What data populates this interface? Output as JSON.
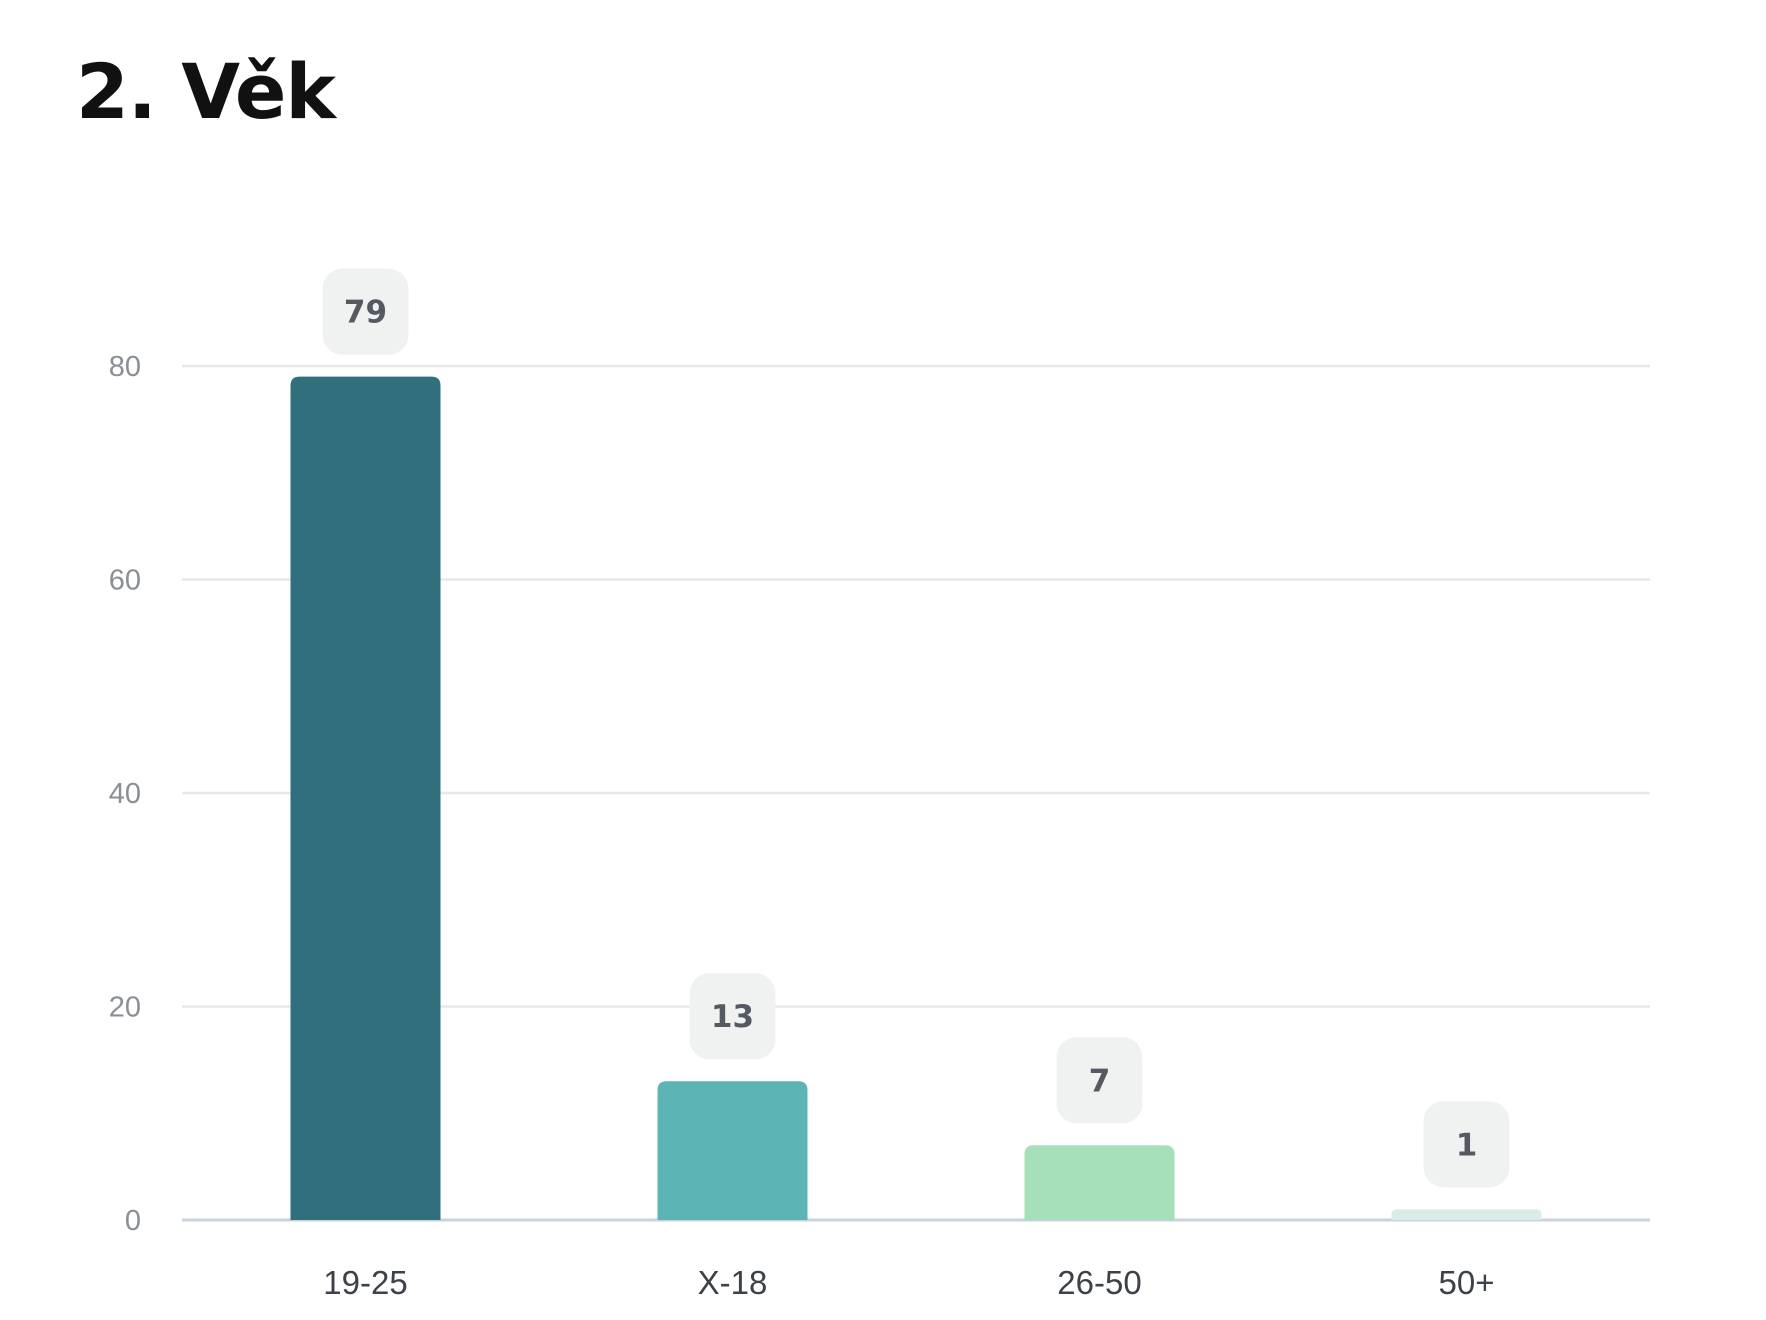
{
  "title": "2. Věk",
  "chart_data": {
    "type": "bar",
    "categories": [
      "19-25",
      "X-18",
      "26-50",
      "50+"
    ],
    "values": [
      79,
      13,
      7,
      1
    ],
    "data_labels": [
      "79",
      "13",
      "7",
      "1"
    ],
    "colors": [
      "#316f7c",
      "#5cb4b5",
      "#a5e0bb",
      "#d8ece8"
    ],
    "ylim": [
      0,
      80
    ],
    "yticks": [
      0,
      20,
      40,
      60,
      80
    ],
    "ytick_labels": [
      "0",
      "20",
      "40",
      "60",
      "80"
    ],
    "grid": true,
    "legend": "none",
    "title": "2. Věk",
    "xlabel": "",
    "ylabel": ""
  }
}
